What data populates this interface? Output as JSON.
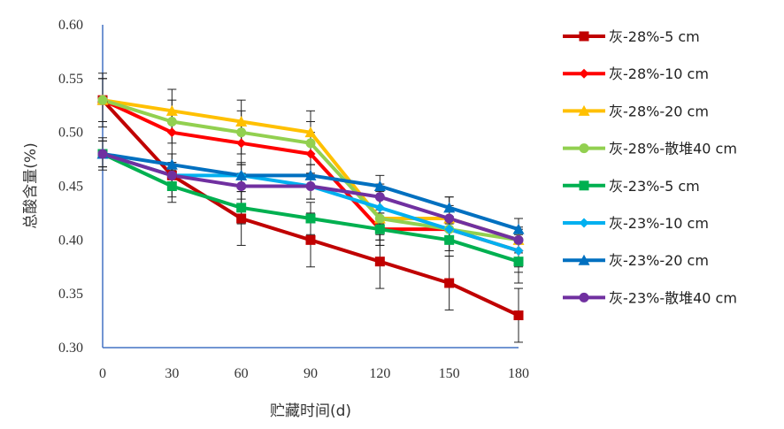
{
  "chart_data": {
    "type": "line",
    "title": "",
    "xlabel": "贮藏时间(d)",
    "ylabel": "总酸含量(%)",
    "x": [
      0,
      30,
      60,
      90,
      120,
      150,
      180
    ],
    "x_tick_labels": [
      "0",
      "30",
      "60",
      "90",
      "120",
      "150",
      "180"
    ],
    "ylim": [
      0.3,
      0.6
    ],
    "y_tick_labels": [
      "0.30",
      "0.35",
      "0.40",
      "0.45",
      "0.50",
      "0.55",
      "0.60"
    ],
    "grid": false,
    "legend_position": "right",
    "series": [
      {
        "name": "灰-28%-5 cm",
        "color": "#C00000",
        "marker": "square",
        "values": [
          0.53,
          0.46,
          0.42,
          0.4,
          0.38,
          0.36,
          0.33
        ],
        "error": [
          0.025,
          0.02,
          0.025,
          0.025,
          0.025,
          0.025,
          0.025
        ]
      },
      {
        "name": "灰-28%-10 cm",
        "color": "#FF0000",
        "marker": "diamond",
        "values": [
          0.53,
          0.5,
          0.49,
          0.48,
          0.41,
          0.41,
          0.39
        ],
        "error": [
          0.02,
          0.02,
          0.02,
          0.02,
          0.015,
          0.02,
          0.02
        ]
      },
      {
        "name": "灰-28%-20 cm",
        "color": "#FFC000",
        "marker": "triangle",
        "values": [
          0.53,
          0.52,
          0.51,
          0.5,
          0.42,
          0.42,
          0.4
        ],
        "error": [
          0.02,
          0.02,
          0.02,
          0.02,
          0.02,
          0.02,
          0.02
        ]
      },
      {
        "name": "灰-28%-散堆40 cm",
        "color": "#92D050",
        "marker": "circle",
        "values": [
          0.53,
          0.51,
          0.5,
          0.49,
          0.42,
          0.41,
          0.4
        ],
        "error": [
          0.02,
          0.02,
          0.02,
          0.02,
          0.02,
          0.02,
          0.02
        ]
      },
      {
        "name": "灰-23%-5 cm",
        "color": "#00B050",
        "marker": "square",
        "values": [
          0.48,
          0.45,
          0.43,
          0.42,
          0.41,
          0.4,
          0.38
        ],
        "error": [
          0.015,
          0.015,
          0.015,
          0.015,
          0.015,
          0.015,
          0.02
        ]
      },
      {
        "name": "灰-23%-10 cm",
        "color": "#00B0F0",
        "marker": "diamond",
        "values": [
          0.48,
          0.46,
          0.46,
          0.45,
          0.43,
          0.41,
          0.39
        ],
        "error": [
          0.012,
          0.012,
          0.012,
          0.012,
          0.015,
          0.012,
          0.015
        ]
      },
      {
        "name": "灰-23%-20 cm",
        "color": "#0070C0",
        "marker": "triangle",
        "values": [
          0.48,
          0.47,
          0.46,
          0.46,
          0.45,
          0.43,
          0.41
        ],
        "error": [
          0.012,
          0.01,
          0.01,
          0.01,
          0.01,
          0.01,
          0.01
        ]
      },
      {
        "name": "灰-23%-散堆40 cm",
        "color": "#7030A0",
        "marker": "circle",
        "values": [
          0.48,
          0.46,
          0.45,
          0.45,
          0.44,
          0.42,
          0.4
        ],
        "error": [
          0.012,
          0.012,
          0.012,
          0.012,
          0.012,
          0.012,
          0.012
        ]
      }
    ]
  }
}
